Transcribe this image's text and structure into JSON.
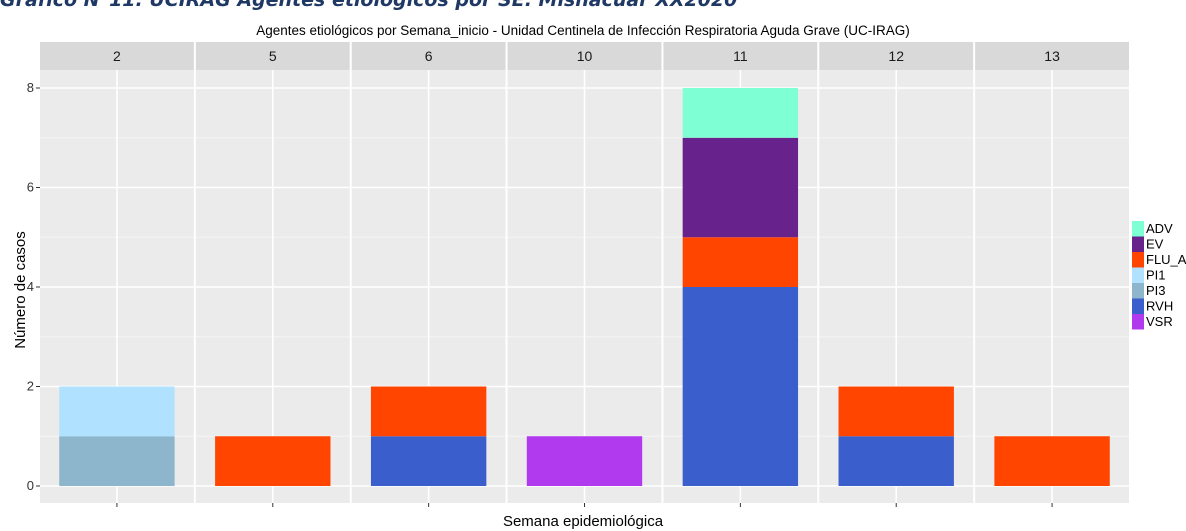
{
  "figure_caption": "Gráfico N°11. UCIRAG Agentes etiológicos por SE. Mishacuar XX2020",
  "chart_data": {
    "type": "bar",
    "stacked": true,
    "faceted": true,
    "title": "Agentes etiológicos por Semana_inicio - Unidad Centinela de Infección Respiratoria Aguda Grave (UC-IRAG)",
    "xlabel": "Semana epidemiológica",
    "ylabel": "Número de casos",
    "ylim": [
      0,
      8.5
    ],
    "yticks": [
      0,
      2,
      4,
      6,
      8
    ],
    "grid": true,
    "legend_position": "right",
    "legend": [
      {
        "name": "ADV",
        "color": "#7fffd4"
      },
      {
        "name": "EV",
        "color": "#68228b"
      },
      {
        "name": "FLU_A",
        "color": "#ff4500"
      },
      {
        "name": "PI1",
        "color": "#b0e2ff"
      },
      {
        "name": "PI3",
        "color": "#8db6cd"
      },
      {
        "name": "RVH",
        "color": "#3a5fcd"
      },
      {
        "name": "VSR",
        "color": "#b23aee"
      }
    ],
    "facets": [
      {
        "label": "2",
        "segments": [
          {
            "agent": "PI3",
            "value": 1
          },
          {
            "agent": "PI1",
            "value": 1
          }
        ]
      },
      {
        "label": "5",
        "segments": [
          {
            "agent": "FLU_A",
            "value": 1
          }
        ]
      },
      {
        "label": "6",
        "segments": [
          {
            "agent": "RVH",
            "value": 1
          },
          {
            "agent": "FLU_A",
            "value": 1
          }
        ]
      },
      {
        "label": "10",
        "segments": [
          {
            "agent": "VSR",
            "value": 1
          }
        ]
      },
      {
        "label": "11",
        "segments": [
          {
            "agent": "RVH",
            "value": 4
          },
          {
            "agent": "FLU_A",
            "value": 1
          },
          {
            "agent": "EV",
            "value": 2
          },
          {
            "agent": "ADV",
            "value": 1
          }
        ]
      },
      {
        "label": "12",
        "segments": [
          {
            "agent": "RVH",
            "value": 1
          },
          {
            "agent": "FLU_A",
            "value": 1
          }
        ]
      },
      {
        "label": "13",
        "segments": [
          {
            "agent": "FLU_A",
            "value": 1
          }
        ]
      }
    ]
  }
}
